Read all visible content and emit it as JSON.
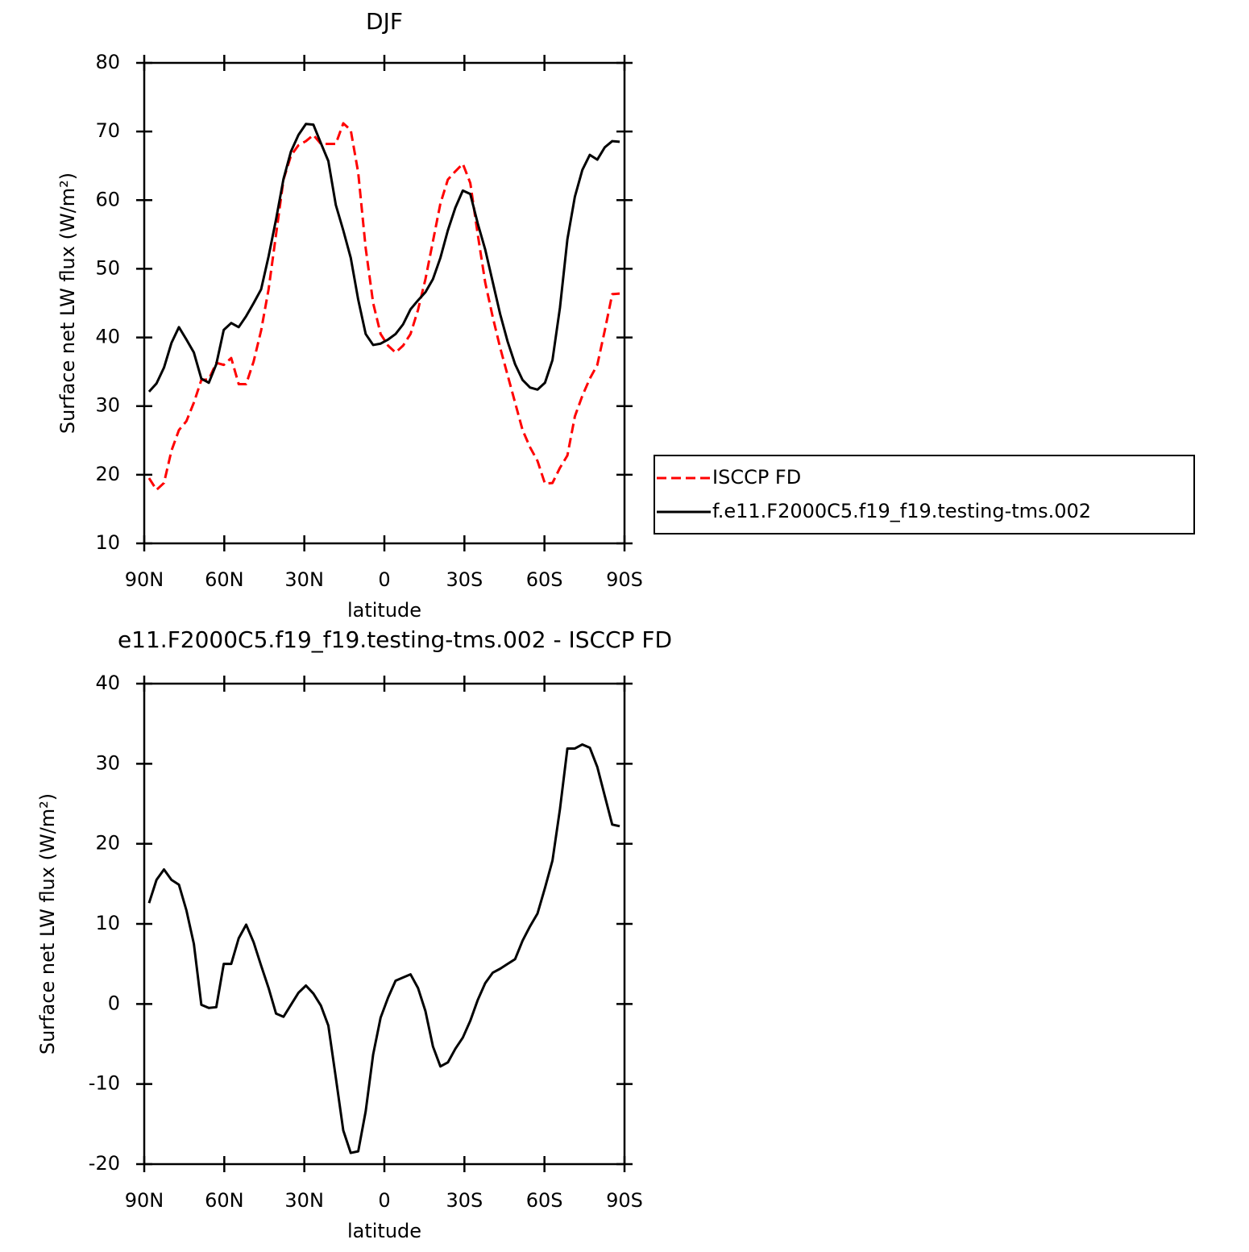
{
  "chart_data": [
    {
      "type": "line",
      "title": "DJF",
      "x_label": "latitude",
      "y_label": "Surface net LW flux (W/m²)",
      "x": [
        88.2,
        85.4,
        82.6,
        79.8,
        77,
        74.2,
        71.4,
        68.6,
        65.8,
        63,
        60.2,
        57.4,
        54.6,
        51.8,
        49,
        46.2,
        43.4,
        40.6,
        37.8,
        35,
        32.2,
        29.4,
        26.6,
        23.8,
        21,
        18.2,
        15.4,
        12.6,
        9.8,
        7,
        4.2,
        1.4,
        -1.4,
        -4.2,
        -7,
        -9.8,
        -12.6,
        -15.4,
        -18.2,
        -21,
        -23.8,
        -26.6,
        -29.4,
        -32.2,
        -35,
        -37.8,
        -40.6,
        -43.4,
        -46.2,
        -49,
        -51.8,
        -54.6,
        -57.4,
        -60.2,
        -63,
        -65.8,
        -68.6,
        -71.4,
        -74.2,
        -77,
        -79.8,
        -82.6,
        -85.4,
        -88.2
      ],
      "xlim": [
        90,
        -90
      ],
      "xticks": [
        {
          "value": 90,
          "label": "90N"
        },
        {
          "value": 60,
          "label": "60N"
        },
        {
          "value": 30,
          "label": "30N"
        },
        0,
        {
          "value": -30,
          "label": "30S"
        },
        {
          "value": -60,
          "label": "60S"
        },
        {
          "value": -90,
          "label": "90S"
        }
      ],
      "ylim": [
        10,
        80
      ],
      "yticks": [
        10,
        20,
        30,
        40,
        50,
        60,
        70,
        80
      ],
      "legend": "right",
      "series": [
        {
          "name": "ISCCP FD",
          "color": "#ff0000",
          "dashed": true,
          "values": [
            19.5,
            17.8,
            18.8,
            23.5,
            26.5,
            27.8,
            30.5,
            33.8,
            33.9,
            36.3,
            36.0,
            37.0,
            33.2,
            33.2,
            36.5,
            41,
            47,
            55,
            63,
            66.5,
            68,
            68.6,
            69.5,
            68.2,
            68.2,
            68.2,
            71.2,
            70.2,
            64,
            53,
            45,
            40.5,
            38.8,
            37.8,
            38.8,
            40.5,
            44,
            48.5,
            54,
            59.5,
            63,
            64.2,
            65.3,
            62.5,
            55,
            48,
            43,
            38.5,
            34.5,
            30.5,
            26.5,
            24,
            22,
            18.7,
            18.8,
            21,
            22.8,
            28.5,
            31.5,
            34,
            36,
            41,
            46.3,
            46.4
          ]
        },
        {
          "name": "f.e11.F2000C5.f19_f19.testing-tms.002",
          "color": "#000000",
          "dashed": false,
          "values": [
            32.1,
            33.3,
            35.6,
            39.2,
            41.5,
            39.7,
            37.8,
            34.0,
            33.4,
            36.1,
            41.1,
            42.1,
            41.5,
            43.1,
            45.0,
            47.0,
            51.8,
            57.2,
            63.1,
            67.1,
            69.5,
            71.1,
            71.0,
            68.3,
            65.7,
            59.3,
            55.6,
            51.6,
            45.5,
            40.5,
            38.9,
            39.1,
            39.7,
            40.5,
            41.9,
            44.1,
            45.4,
            46.6,
            48.5,
            51.6,
            55.6,
            58.9,
            61.4,
            60.9,
            56.6,
            52.8,
            48.1,
            43.4,
            39.4,
            36.1,
            33.8,
            32.7,
            32.4,
            33.4,
            36.7,
            44.3,
            54.3,
            60.5,
            64.4,
            66.6,
            65.9,
            67.7,
            68.6,
            68.5
          ]
        }
      ]
    },
    {
      "type": "line",
      "title": "e11.F2000C5.f19_f19.testing-tms.002 - ISCCP FD",
      "x_label": "latitude",
      "y_label": "Surface net LW flux (W/m²)",
      "x": [
        88.2,
        85.4,
        82.6,
        79.8,
        77,
        74.2,
        71.4,
        68.6,
        65.8,
        63,
        60.2,
        57.4,
        54.6,
        51.8,
        49,
        46.2,
        43.4,
        40.6,
        37.8,
        35,
        32.2,
        29.4,
        26.6,
        23.8,
        21,
        18.2,
        15.4,
        12.6,
        9.8,
        7,
        4.2,
        1.4,
        -1.4,
        -4.2,
        -7,
        -9.8,
        -12.6,
        -15.4,
        -18.2,
        -21,
        -23.8,
        -26.6,
        -29.4,
        -32.2,
        -35,
        -37.8,
        -40.6,
        -43.4,
        -46.2,
        -49,
        -51.8,
        -54.6,
        -57.4,
        -60.2,
        -63,
        -65.8,
        -68.6,
        -71.4,
        -74.2,
        -77,
        -79.8,
        -82.6,
        -85.4,
        -88.2
      ],
      "xlim": [
        90,
        -90
      ],
      "xticks": [
        {
          "value": 90,
          "label": "90N"
        },
        {
          "value": 60,
          "label": "60N"
        },
        {
          "value": 30,
          "label": "30N"
        },
        0,
        {
          "value": -30,
          "label": "30S"
        },
        {
          "value": -60,
          "label": "60S"
        },
        {
          "value": -90,
          "label": "90S"
        }
      ],
      "ylim": [
        -20,
        40
      ],
      "yticks": [
        -20,
        -10,
        0,
        10,
        20,
        30,
        40
      ],
      "color": "#000000",
      "values": [
        12.6,
        15.5,
        16.8,
        15.5,
        14.9,
        11.7,
        7.5,
        -0.1,
        -0.5,
        -0.4,
        5.0,
        5.0,
        8.2,
        9.9,
        7.7,
        4.8,
        2.0,
        -1.2,
        -1.6,
        -0.1,
        1.4,
        2.3,
        1.3,
        -0.2,
        -2.7,
        -9.2,
        -15.8,
        -18.6,
        -18.4,
        -13.4,
        -6.3,
        -1.7,
        0.8,
        2.9,
        3.3,
        3.7,
        2.0,
        -0.9,
        -5.3,
        -7.8,
        -7.3,
        -5.6,
        -4.2,
        -2.1,
        0.5,
        2.6,
        3.9,
        4.4,
        5.0,
        5.6,
        7.9,
        9.7,
        11.3,
        14.5,
        17.9,
        24.3,
        31.9,
        31.9,
        32.4,
        32.0,
        29.6,
        26.0,
        22.4,
        22.2
      ]
    }
  ]
}
